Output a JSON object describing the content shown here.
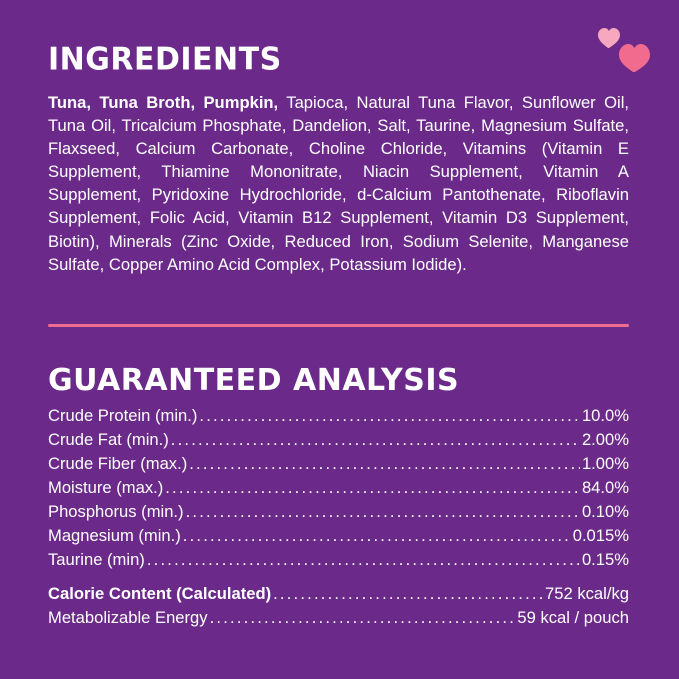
{
  "ingredients": {
    "heading": "INGREDIENTS",
    "bold_prefix": "Tuna, Tuna Broth, Pumpkin,",
    "text": " Tapioca, Natural Tuna Flavor, Sunflower Oil, Tuna Oil, Tricalcium Phosphate, Dandelion, Salt, Taurine, Magnesium Sulfate, Flaxseed, Calcium Carbonate, Choline Chloride, Vitamins (Vitamin E Supplement, Thiamine Mononitrate, Niacin Supplement, Vitamin A Supplement, Pyridoxine Hydrochloride, d-Calcium Pantothenate, Riboflavin Supplement, Folic Acid, Vitamin B12 Supplement, Vitamin D3 Supplement, Biotin), Minerals (Zinc Oxide, Reduced Iron, Sodium Selenite, Manganese Sulfate, Copper Amino Acid Complex, Potassium Iodide)."
  },
  "analysis": {
    "heading": "GUARANTEED ANALYSIS",
    "rows": [
      {
        "label": "Crude Protein (min.)",
        "value": "10.0%"
      },
      {
        "label": "Crude Fat (min.)",
        "value": "2.00%"
      },
      {
        "label": "Crude Fiber (max.)",
        "value": "1.00%"
      },
      {
        "label": "Moisture (max.)",
        "value": "84.0%"
      },
      {
        "label": "Phosphorus (min.)",
        "value": "0.10%"
      },
      {
        "label": "Magnesium (min.)",
        "value": "0.015%"
      },
      {
        "label": "Taurine (min)",
        "value": "0.15%"
      }
    ],
    "calorie": {
      "label": "Calorie Content (Calculated)",
      "value": "752 kcal/kg"
    },
    "energy": {
      "label": "Metabolizable Energy",
      "value": "59 kcal / pouch"
    }
  },
  "colors": {
    "background": "#6b2a8a",
    "accent": "#f16b8f",
    "text": "#ffffff"
  },
  "decor": {
    "icon": "hearts-icon"
  }
}
